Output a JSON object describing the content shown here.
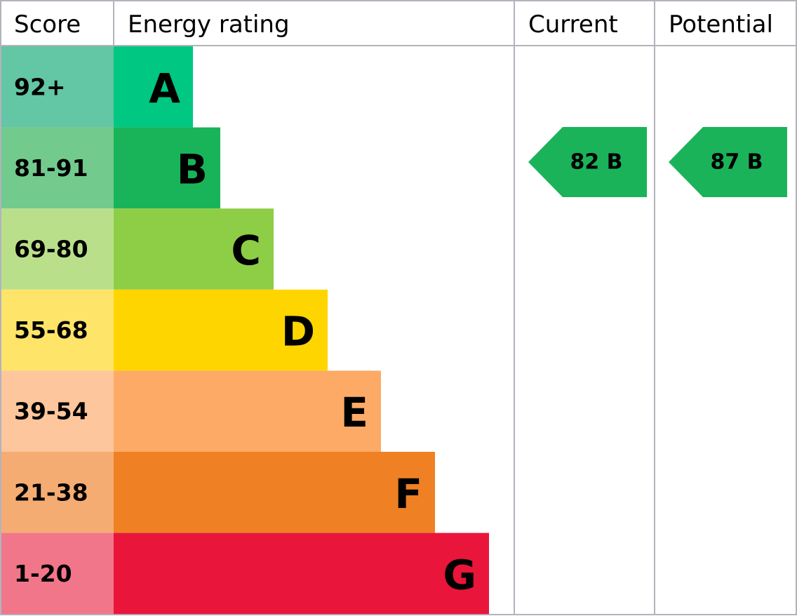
{
  "header": {
    "score": "Score",
    "rating": "Energy rating",
    "current": "Current",
    "potential": "Potential"
  },
  "bands": [
    {
      "score": "92+",
      "letter": "A",
      "score_color": "#63c6a4",
      "color": "#00c781"
    },
    {
      "score": "81-91",
      "letter": "B",
      "score_color": "#72cb8d",
      "color": "#19b459"
    },
    {
      "score": "69-80",
      "letter": "C",
      "score_color": "#badf8a",
      "color": "#8dce46"
    },
    {
      "score": "55-68",
      "letter": "D",
      "score_color": "#ffe46a",
      "color": "#ffd500"
    },
    {
      "score": "39-54",
      "letter": "E",
      "score_color": "#fdc69c",
      "color": "#fcaa65"
    },
    {
      "score": "21-38",
      "letter": "F",
      "score_color": "#f5ac73",
      "color": "#ef8023"
    },
    {
      "score": "1-20",
      "letter": "G",
      "score_color": "#f27689",
      "color": "#e9153b"
    }
  ],
  "current": {
    "label": "82 B",
    "color": "#1bb35a"
  },
  "potential": {
    "label": "87 B",
    "color": "#1bb35a"
  }
}
